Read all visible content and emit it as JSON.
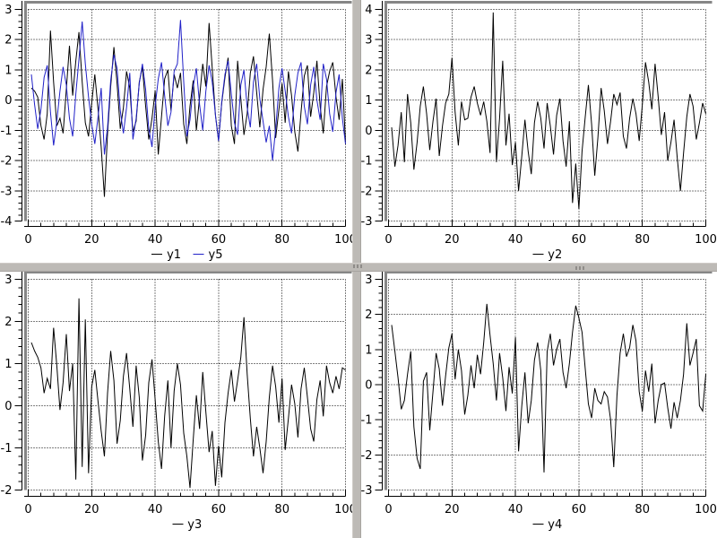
{
  "window": {
    "background": "#ffffff"
  },
  "separators": {
    "color": "#bdbab6",
    "handle_color": "#8f8c89"
  },
  "styles": {
    "box_border": "#868686",
    "grid_color": "#000000",
    "text_color": "#000000",
    "series_blue": "#2121c8",
    "font_size": 13
  },
  "chart_data": [
    {
      "type": "line",
      "title": "",
      "xlabel": "",
      "ylabel": "",
      "xlim": [
        0,
        100
      ],
      "ylim": [
        -4,
        3
      ],
      "xticks": [
        0,
        20,
        40,
        60,
        80,
        100
      ],
      "yticks": [
        -4,
        -3,
        -2,
        -1,
        0,
        1,
        2,
        3
      ],
      "x_minor_step": 4,
      "y_minor_step": 0.2,
      "grid": true,
      "legend_position": "below",
      "x_start": 1,
      "series": [
        {
          "name": "y1",
          "color": "#000000",
          "values": [
            0.4,
            0.3,
            0.1,
            -0.85,
            -1.3,
            -0.45,
            2.3,
            0.6,
            -0.85,
            -0.6,
            -1.1,
            0.35,
            1.8,
            0.15,
            1.3,
            2.25,
            0.6,
            -0.75,
            -1.2,
            -0.1,
            0.85,
            -0.3,
            -1.55,
            -3.2,
            -1.1,
            0.45,
            1.75,
            0.55,
            -0.95,
            -0.25,
            0.95,
            0.4,
            -1.05,
            -0.7,
            0.6,
            1.1,
            -0.2,
            -1.3,
            -0.6,
            0.3,
            -1.8,
            -0.55,
            0.7,
            1.0,
            -0.35,
            0.85,
            0.4,
            0.9,
            -0.8,
            -1.45,
            -0.2,
            0.65,
            -1.0,
            0.1,
            1.2,
            0.45,
            2.55,
            1.05,
            -0.5,
            -1.35,
            -0.1,
            0.75,
            1.4,
            -0.85,
            -1.45,
            1.3,
            0.05,
            -1.15,
            -0.45,
            0.9,
            1.45,
            0.25,
            -0.9,
            0.35,
            1.1,
            2.2,
            0.65,
            -1.25,
            -0.3,
            0.55,
            -0.75,
            0.95,
            0.15,
            -1.05,
            -1.7,
            -0.4,
            0.8,
            1.15,
            -0.55,
            0.25,
            1.3,
            -0.2,
            -1.1,
            0.45,
            0.95,
            1.25,
            0.1,
            -0.65,
            0.7,
            -1.4
          ]
        },
        {
          "name": "y5",
          "color": "#2121c8",
          "values": [
            0.85,
            -0.15,
            -0.95,
            -0.3,
            0.75,
            1.15,
            -0.4,
            -1.5,
            -0.7,
            0.3,
            1.1,
            0.5,
            -0.6,
            -1.2,
            0.2,
            1.35,
            2.6,
            1.2,
            0.1,
            -0.8,
            -1.45,
            -0.55,
            0.4,
            -1.8,
            -0.9,
            0.65,
            1.5,
            1.05,
            -0.35,
            -1.1,
            -0.25,
            0.9,
            -1.3,
            -0.6,
            0.55,
            1.2,
            0.35,
            -0.95,
            -1.55,
            -0.2,
            0.7,
            1.25,
            0.15,
            -0.85,
            -0.4,
            0.95,
            1.2,
            2.65,
            0.6,
            -1.2,
            -0.65,
            0.45,
            1.05,
            -0.15,
            -1.0,
            0.3,
            1.15,
            0.6,
            -0.5,
            -1.35,
            -0.05,
            0.85,
            1.3,
            0.2,
            -0.75,
            -1.15,
            0.5,
            1.0,
            -0.25,
            -0.9,
            0.6,
            1.2,
            0.05,
            -0.7,
            -1.4,
            -0.85,
            -2.0,
            -0.95,
            0.4,
            1.05,
            0.3,
            -0.55,
            -1.1,
            0.15,
            0.9,
            1.25,
            -0.2,
            -0.8,
            0.5,
            1.1,
            0.0,
            -0.65,
            1.2,
            0.7,
            -0.45,
            -1.05,
            0.25,
            0.85,
            -0.6,
            -1.45
          ]
        }
      ]
    },
    {
      "type": "line",
      "title": "",
      "xlabel": "",
      "ylabel": "",
      "xlim": [
        0,
        100
      ],
      "ylim": [
        -3,
        4
      ],
      "xticks": [
        0,
        20,
        40,
        60,
        80,
        100
      ],
      "yticks": [
        -3,
        -2,
        -1,
        0,
        1,
        2,
        3,
        4
      ],
      "x_minor_step": 4,
      "y_minor_step": 0.2,
      "grid": true,
      "legend_position": "below",
      "x_start": 1,
      "series": [
        {
          "name": "y2",
          "color": "#000000",
          "values": [
            0.1,
            -1.2,
            -0.5,
            0.6,
            -1.05,
            1.2,
            0.25,
            -1.3,
            -0.4,
            0.8,
            1.45,
            0.55,
            -0.65,
            0.3,
            1.05,
            -0.85,
            0.15,
            0.9,
            1.2,
            2.4,
            0.6,
            -0.5,
            0.95,
            0.35,
            0.4,
            1.1,
            1.45,
            0.9,
            0.5,
            0.95,
            0.3,
            -0.75,
            3.9,
            -1.05,
            0.4,
            2.3,
            -0.5,
            0.55,
            -1.15,
            -0.4,
            -2.0,
            -0.85,
            0.35,
            -0.7,
            -1.45,
            0.25,
            0.95,
            0.4,
            -0.6,
            0.9,
            0.15,
            -0.8,
            0.5,
            1.05,
            -0.35,
            -1.2,
            0.3,
            -2.4,
            -1.1,
            -2.6,
            -0.7,
            0.45,
            1.5,
            0.2,
            -1.5,
            -0.25,
            1.4,
            0.65,
            -0.45,
            0.3,
            1.2,
            0.85,
            1.25,
            -0.2,
            -0.6,
            0.4,
            1.05,
            0.55,
            -0.35,
            0.85,
            2.25,
            1.6,
            0.7,
            2.2,
            1.1,
            -0.15,
            0.6,
            -1.0,
            -0.4,
            0.35,
            -0.9,
            -2.0,
            -0.75,
            0.45,
            1.2,
            0.8,
            -0.3,
            0.25,
            0.9,
            0.55
          ]
        }
      ]
    },
    {
      "type": "line",
      "title": "",
      "xlabel": "",
      "ylabel": "",
      "xlim": [
        0,
        100
      ],
      "ylim": [
        -2,
        3
      ],
      "xticks": [
        0,
        20,
        40,
        60,
        80,
        100
      ],
      "yticks": [
        -2,
        -1,
        0,
        1,
        2,
        3
      ],
      "x_minor_step": 4,
      "y_minor_step": 0.2,
      "grid": true,
      "legend_position": "below",
      "x_start": 1,
      "series": [
        {
          "name": "y3",
          "color": "#000000",
          "values": [
            1.5,
            1.3,
            1.15,
            0.9,
            0.3,
            0.65,
            0.4,
            1.85,
            0.95,
            -0.1,
            0.55,
            1.7,
            0.35,
            1.0,
            -1.75,
            2.55,
            -1.45,
            2.05,
            -1.6,
            0.45,
            0.85,
            0.1,
            -0.6,
            -1.2,
            0.3,
            1.3,
            0.6,
            -0.9,
            -0.35,
            0.7,
            1.25,
            0.4,
            -0.5,
            0.95,
            0.2,
            -1.3,
            -0.7,
            0.55,
            1.1,
            0.15,
            -0.85,
            -1.5,
            -0.25,
            0.6,
            -1.0,
            0.35,
            1.0,
            0.5,
            -0.65,
            -1.2,
            -1.95,
            -0.8,
            0.25,
            -0.55,
            0.8,
            -0.15,
            -1.1,
            -0.6,
            -1.9,
            -0.95,
            -1.7,
            -0.4,
            0.3,
            0.85,
            0.1,
            0.6,
            1.15,
            2.1,
            0.75,
            -0.3,
            -1.2,
            -0.5,
            -1.0,
            -1.6,
            -0.85,
            0.2,
            0.95,
            0.45,
            -0.4,
            0.65,
            -1.05,
            -0.3,
            0.5,
            0.05,
            -0.75,
            0.4,
            0.9,
            0.2,
            -0.55,
            -0.85,
            0.15,
            0.6,
            -0.25,
            0.95,
            0.55,
            0.3,
            0.7,
            0.4,
            0.9,
            0.85
          ]
        }
      ]
    },
    {
      "type": "line",
      "title": "",
      "xlabel": "",
      "ylabel": "",
      "xlim": [
        0,
        100
      ],
      "ylim": [
        -3,
        3
      ],
      "xticks": [
        0,
        20,
        40,
        60,
        80,
        100
      ],
      "yticks": [
        -3,
        -2,
        -1,
        0,
        1,
        2,
        3
      ],
      "x_minor_step": 4,
      "y_minor_step": 0.2,
      "grid": true,
      "legend_position": "below",
      "x_start": 1,
      "series": [
        {
          "name": "y4",
          "color": "#000000",
          "values": [
            1.7,
            0.95,
            0.2,
            -0.7,
            -0.45,
            0.3,
            0.95,
            -1.2,
            -2.1,
            -2.4,
            0.1,
            0.35,
            -1.3,
            -0.2,
            0.9,
            0.45,
            -0.6,
            0.25,
            1.05,
            1.45,
            0.15,
            1.0,
            0.4,
            -0.85,
            -0.3,
            0.55,
            -0.1,
            0.85,
            0.3,
            1.2,
            2.3,
            1.4,
            0.6,
            -0.45,
            0.9,
            0.2,
            -0.75,
            0.5,
            -0.25,
            1.35,
            -1.9,
            -0.6,
            0.35,
            -1.1,
            -0.45,
            0.7,
            1.2,
            0.4,
            -2.5,
            0.95,
            1.45,
            0.55,
            1.0,
            1.3,
            0.35,
            -0.1,
            0.6,
            1.5,
            2.25,
            1.9,
            1.5,
            0.45,
            -0.55,
            -0.95,
            -0.1,
            -0.45,
            -0.55,
            -0.2,
            -0.35,
            -1.0,
            -2.35,
            -0.3,
            0.9,
            1.45,
            0.8,
            1.05,
            1.7,
            1.25,
            -0.2,
            -0.75,
            0.4,
            -0.2,
            0.6,
            -1.1,
            -0.45,
            0.0,
            0.05,
            -0.65,
            -1.25,
            -0.5,
            -0.95,
            -0.45,
            0.3,
            1.75,
            0.55,
            0.9,
            1.3,
            -0.6,
            -0.75,
            0.3
          ]
        }
      ]
    }
  ]
}
